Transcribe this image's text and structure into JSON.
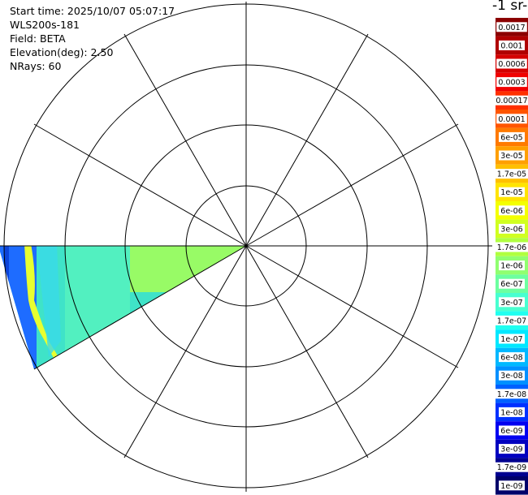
{
  "header": {
    "start_time": "Start time: 2025/10/07 05:07:17",
    "instrument": "WLS200s-181",
    "field": "Field: BETA",
    "elevation": "Elevation(deg): 2.50",
    "nrays": "NRays: 60"
  },
  "colorbar": {
    "title": "-1 sr-",
    "ticks": [
      "0.0017",
      "0.001",
      "0.0006",
      "0.0003",
      "0.00017",
      "0.0001",
      "6e-05",
      "3e-05",
      "1.7e-05",
      "1e-05",
      "6e-06",
      "3e-06",
      "1.7e-06",
      "1e-06",
      "6e-07",
      "3e-07",
      "1.7e-07",
      "1e-07",
      "6e-08",
      "3e-08",
      "1.7e-08",
      "1e-08",
      "6e-09",
      "3e-09",
      "1.7e-09",
      "1e-09"
    ],
    "colors": [
      "#8b0000",
      "#b00000",
      "#d40000",
      "#f00000",
      "#ff3000",
      "#ff5500",
      "#ff7a00",
      "#ffa000",
      "#ffc000",
      "#ffe400",
      "#f4ff00",
      "#d0ff20",
      "#b0ff40",
      "#90ff70",
      "#6cffa0",
      "#48ffd0",
      "#20fff0",
      "#00e8ff",
      "#00b8ff",
      "#0090ff",
      "#0060ff",
      "#0030ff",
      "#0000f0",
      "#0000c0",
      "#000090",
      "#00006a"
    ]
  },
  "sector": {
    "azimuth_start_deg": 240,
    "azimuth_end_deg": 270,
    "note": "scan wedge extends west/southwest of radar"
  }
}
